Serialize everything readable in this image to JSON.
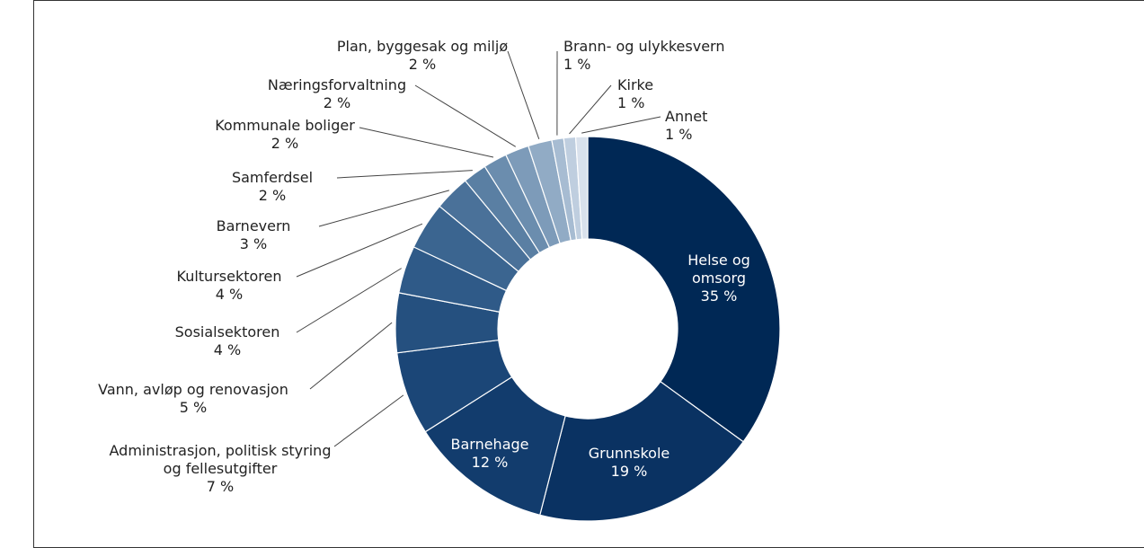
{
  "chart_data": {
    "type": "donut",
    "categories": [
      "Helse og omsorg",
      "Grunnskole",
      "Barnehage",
      "Administrasjon, politisk styring og fellesutgifter",
      "Vann, avløp og renovasjon",
      "Sosialsektoren",
      "Kultursektoren",
      "Barnevern",
      "Samferdsel",
      "Kommunale boliger",
      "Næringsforvaltning",
      "Plan, byggesak og miljø",
      "Brann- og ulykkesvern",
      "Kirke",
      "Annet"
    ],
    "values": [
      35,
      19,
      12,
      7,
      5,
      4,
      4,
      3,
      2,
      2,
      2,
      2,
      1,
      1,
      1
    ],
    "value_labels": [
      "35 %",
      "19 %",
      "12 %",
      "7 %",
      "5 %",
      "4 %",
      "4 %",
      "3 %",
      "2 %",
      "2 %",
      "2 %",
      "2 %",
      "1 %",
      "1 %",
      "1 %"
    ],
    "colors": [
      "#002855",
      "#0a3262",
      "#123c6d",
      "#1b4677",
      "#25507f",
      "#2f5a88",
      "#3b6590",
      "#4a7199",
      "#5a7fa3",
      "#6b8dae",
      "#7d9bb9",
      "#91abc5",
      "#a7bcd2",
      "#bfcedf",
      "#d9e1ec"
    ]
  }
}
